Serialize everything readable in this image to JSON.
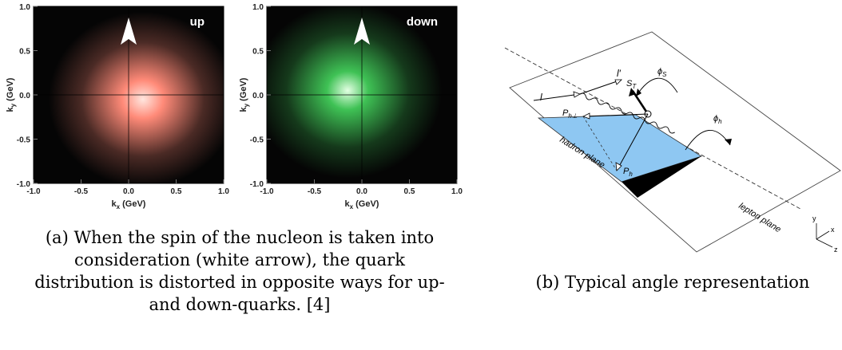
{
  "figure_a": {
    "heatmaps": [
      {
        "label": "up",
        "glow_color": "#ff8a78",
        "center_color": "#ffe6df",
        "distribution_center_k": [
          0.15,
          -0.05
        ],
        "xlabel": "k",
        "xlabel_sub": "x",
        "ylabel": "k",
        "ylabel_sub": "y",
        "unit": "(GeV)",
        "x_ticks": [
          "-1.0",
          "-0.5",
          "0.0",
          "0.5",
          "1.0"
        ],
        "y_ticks": [
          "1.0",
          "0.5",
          "0.0",
          "-0.5",
          "-1.0"
        ]
      },
      {
        "label": "down",
        "glow_color": "#3fc255",
        "center_color": "#e3ffe3",
        "distribution_center_k": [
          -0.15,
          0.05
        ],
        "xlabel": "k",
        "xlabel_sub": "x",
        "ylabel": "k",
        "ylabel_sub": "y",
        "unit": "(GeV)",
        "x_ticks": [
          "-1.0",
          "-0.5",
          "0.0",
          "0.5",
          "1.0"
        ],
        "y_ticks": [
          "1.0",
          "0.5",
          "0.0",
          "-0.5",
          "-1.0"
        ]
      }
    ],
    "caption_lines": [
      "(a) When the spin of the nucleon is taken into",
      "consideration (white arrow), the quark",
      "distribution is distorted in opposite ways for up-",
      "and down-quarks. [4]"
    ]
  },
  "figure_b": {
    "labels": {
      "l": "l",
      "l_prime": "l′",
      "s_t": "S",
      "s_t_sub": "T",
      "phi_s": "ϕ",
      "phi_s_sub": "S",
      "phi_h": "ϕ",
      "phi_h_sub": "h",
      "p_h_perp": "P",
      "p_h_perp_sub": "h⊥",
      "p_h": "P",
      "p_h_sub": "h",
      "hadron_plane": "hadron plane",
      "lepton_plane": "lepton plane",
      "axis_x": "x",
      "axis_y": "y",
      "axis_z": "z"
    },
    "colors": {
      "hadron_plane": "#8ec7f2",
      "shadow": "#000000"
    },
    "caption": "(b) Typical angle representation"
  }
}
